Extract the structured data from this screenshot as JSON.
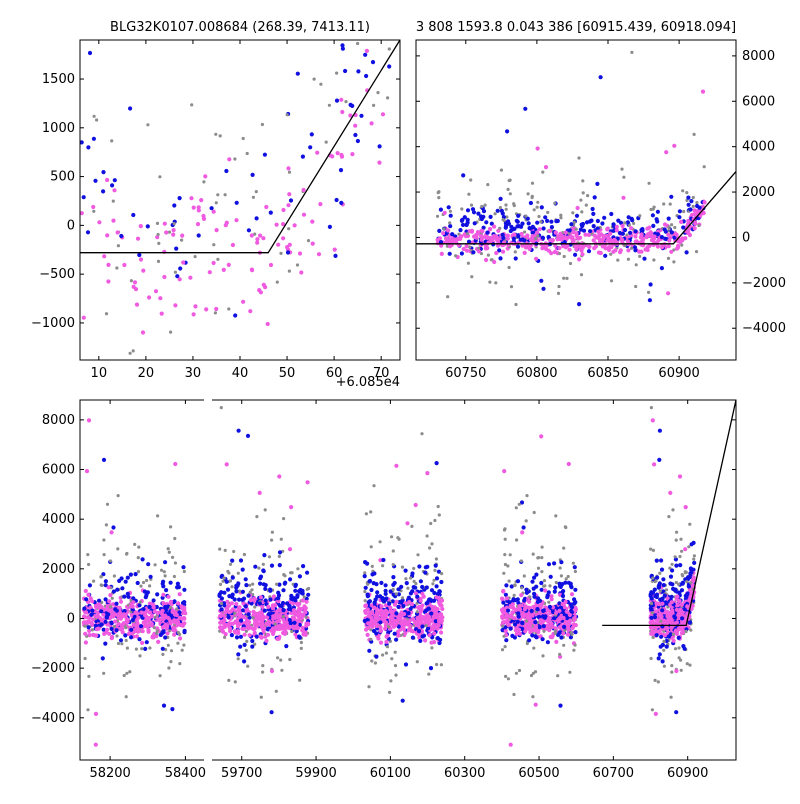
{
  "colors": {
    "gray": "#8c8c8c",
    "blue": "#1010e0",
    "magenta": "#f05ae0",
    "line": "#000000",
    "background": "#ffffff"
  },
  "chart_data": [
    {
      "id": "top_left",
      "type": "scatter",
      "title": "BLG32K0107.008684 (268.39, 7413.11)",
      "x_offset_label": "+6.085e4",
      "xlim": [
        6,
        74
      ],
      "ylim": [
        -1380,
        1900
      ],
      "xticks": [
        10,
        20,
        30,
        40,
        50,
        60,
        70
      ],
      "yticks": [
        -1000,
        -500,
        0,
        500,
        1000,
        1500
      ],
      "ytick_side": "left",
      "model_line": {
        "x": [
          6,
          46,
          74
        ],
        "y": [
          -280,
          -280,
          1900
        ]
      }
    },
    {
      "id": "top_right",
      "type": "scatter",
      "title": "3 808 1593.8 0.043 386 [60915.439, 60918.094]",
      "xlim": [
        60715,
        60940
      ],
      "ylim": [
        -5400,
        8700
      ],
      "xticks": [
        60750,
        60800,
        60850,
        60900
      ],
      "yticks": [
        -4000,
        -2000,
        0,
        2000,
        4000,
        6000,
        8000
      ],
      "ytick_side": "right",
      "model_line": {
        "x": [
          60715,
          60896,
          60940
        ],
        "y": [
          -280,
          -280,
          2900
        ]
      }
    },
    {
      "id": "bottom",
      "type": "scatter",
      "title": "",
      "xlim": [
        58120,
        61030
      ],
      "ylim": [
        -5700,
        8800
      ],
      "xticks": [
        58200,
        58400,
        59700,
        59900,
        60100,
        60300,
        60500,
        60700,
        60900
      ],
      "yticks": [
        -4000,
        -2000,
        0,
        2000,
        4000,
        6000,
        8000
      ],
      "ytick_side": "left",
      "axis_break": true,
      "model_line": {
        "x": [
          60670,
          60896,
          61030
        ],
        "y": [
          -280,
          -280,
          8800
        ]
      }
    }
  ]
}
